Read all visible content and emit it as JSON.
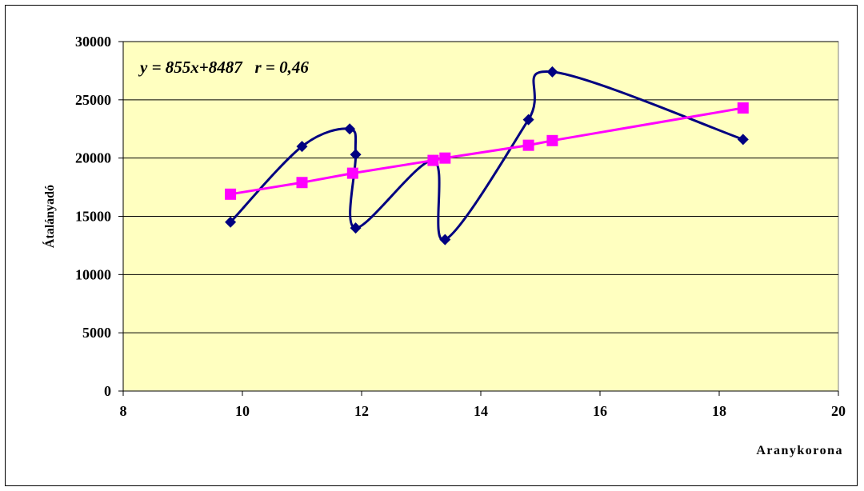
{
  "chart_data": {
    "type": "line",
    "xlabel": "Aranykorona",
    "ylabel": "Átalányadó",
    "annotation": "y = 855x+8487   r = 0,46",
    "xlim": [
      8,
      20
    ],
    "ylim": [
      0,
      30000
    ],
    "x_ticks": [
      "8",
      "10",
      "12",
      "14",
      "16",
      "18",
      "20"
    ],
    "y_ticks": [
      "0",
      "5000",
      "10000",
      "15000",
      "20000",
      "25000",
      "30000"
    ],
    "grid": "horizontal",
    "plot_background": "#ffffc0",
    "series": [
      {
        "color": "#000080",
        "marker": "diamond",
        "smooth": true,
        "points": [
          [
            9.8,
            14500
          ],
          [
            11.0,
            21000
          ],
          [
            11.8,
            22500
          ],
          [
            11.9,
            20300
          ],
          [
            11.9,
            14000
          ],
          [
            13.2,
            19800
          ],
          [
            13.4,
            13000
          ],
          [
            14.8,
            23300
          ],
          [
            15.2,
            27400
          ],
          [
            18.4,
            21600
          ]
        ]
      },
      {
        "color": "#ff00ff",
        "marker": "square",
        "smooth": false,
        "points": [
          [
            9.8,
            16900
          ],
          [
            11.0,
            17900
          ],
          [
            11.85,
            18700
          ],
          [
            13.2,
            19800
          ],
          [
            13.4,
            20000
          ],
          [
            14.8,
            21100
          ],
          [
            15.2,
            21500
          ],
          [
            18.4,
            24300
          ]
        ]
      }
    ]
  }
}
